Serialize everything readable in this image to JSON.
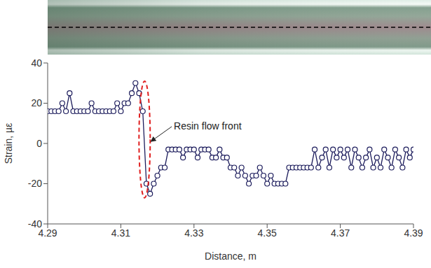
{
  "chart_data": {
    "type": "line",
    "x_label": "Distance, m",
    "y_label": "Strain, µε",
    "annotations": [
      {
        "text": "Resin flow front"
      }
    ],
    "xlim": [
      4.29,
      4.39
    ],
    "xticks": [
      4.29,
      4.31,
      4.33,
      4.35,
      4.37,
      4.39
    ],
    "ylim": [
      -40,
      40
    ],
    "yticks": [
      -40,
      -20,
      0,
      20,
      40
    ],
    "grid": false,
    "series": [
      {
        "name": "Strain",
        "color": "#1c1c5c",
        "marker": "circle",
        "line_style": "solid",
        "x": [
          4.29,
          4.291,
          4.292,
          4.293,
          4.294,
          4.295,
          4.296,
          4.297,
          4.298,
          4.299,
          4.3,
          4.301,
          4.302,
          4.303,
          4.304,
          4.305,
          4.306,
          4.307,
          4.308,
          4.309,
          4.31,
          4.311,
          4.312,
          4.313,
          4.314,
          4.315,
          4.316,
          4.317,
          4.318,
          4.319,
          4.32,
          4.321,
          4.322,
          4.323,
          4.324,
          4.325,
          4.326,
          4.327,
          4.328,
          4.329,
          4.33,
          4.331,
          4.332,
          4.333,
          4.334,
          4.335,
          4.336,
          4.337,
          4.338,
          4.339,
          4.34,
          4.341,
          4.342,
          4.343,
          4.344,
          4.345,
          4.346,
          4.347,
          4.348,
          4.349,
          4.35,
          4.351,
          4.352,
          4.353,
          4.354,
          4.355,
          4.356,
          4.357,
          4.358,
          4.359,
          4.36,
          4.361,
          4.362,
          4.363,
          4.364,
          4.365,
          4.366,
          4.367,
          4.368,
          4.369,
          4.37,
          4.371,
          4.372,
          4.373,
          4.374,
          4.375,
          4.376,
          4.377,
          4.378,
          4.379,
          4.38,
          4.381,
          4.382,
          4.383,
          4.384,
          4.385,
          4.386,
          4.387,
          4.388,
          4.389,
          4.39
        ],
        "values": [
          16,
          16,
          16,
          16,
          20,
          16,
          25,
          16,
          16,
          16,
          16,
          16,
          20,
          16,
          16,
          16,
          16,
          16,
          16,
          20,
          16,
          20,
          20,
          25,
          30,
          25,
          16,
          -20,
          -25,
          -20,
          -16,
          -12,
          -12,
          -3,
          -3,
          -3,
          -3,
          -7,
          -3,
          -3,
          -3,
          -7,
          -3,
          -3,
          -3,
          -7,
          -7,
          -3,
          -7,
          -7,
          -12,
          -12,
          -16,
          -12,
          -16,
          -20,
          -16,
          -16,
          -12,
          -16,
          -20,
          -16,
          -20,
          -20,
          -20,
          -20,
          -12,
          -12,
          -12,
          -12,
          -12,
          -12,
          -12,
          -3,
          -12,
          -7,
          -3,
          -12,
          -3,
          -7,
          -3,
          -7,
          -3,
          -12,
          -3,
          -7,
          -12,
          -7,
          -3,
          -12,
          -7,
          -12,
          -3,
          -7,
          -12,
          -3,
          -7,
          -12,
          -3,
          -7,
          -3
        ]
      }
    ]
  }
}
